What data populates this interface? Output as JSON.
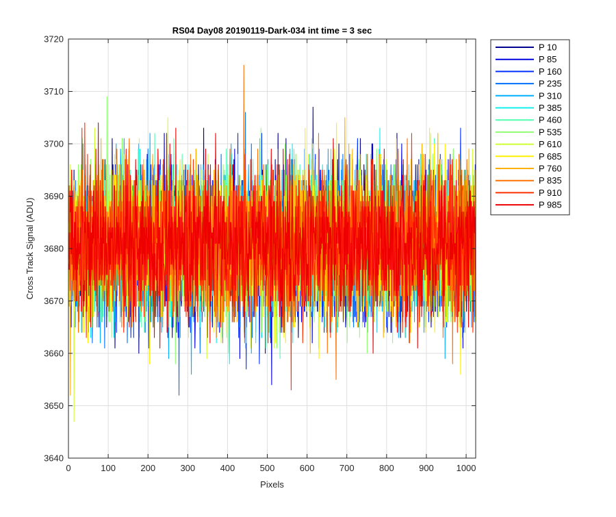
{
  "chart_data": {
    "type": "line",
    "title": "RS04 Day08 20190119-Dark-034 int time = 3 sec",
    "xlabel": "Pixels",
    "ylabel": "Cross Track Signal (ADU)",
    "xlim": [
      0,
      1024
    ],
    "ylim": [
      3640,
      3720
    ],
    "xticks": [
      0,
      100,
      200,
      300,
      400,
      500,
      600,
      700,
      800,
      900,
      1000
    ],
    "yticks": [
      3640,
      3650,
      3660,
      3670,
      3680,
      3690,
      3700,
      3710,
      3720
    ],
    "grid": true,
    "legend_position": "outside-top-right",
    "n_pixels": 1024,
    "series": [
      {
        "name": "P 10",
        "color": "#00008f",
        "mean": 3681,
        "min": 3660,
        "max": 3703
      },
      {
        "name": "P 85",
        "color": "#0000df",
        "mean": 3681,
        "min": 3654,
        "max": 3707
      },
      {
        "name": "P 160",
        "color": "#0030ff",
        "mean": 3681,
        "min": 3657,
        "max": 3703
      },
      {
        "name": "P 235",
        "color": "#0070ff",
        "mean": 3681,
        "min": 3652,
        "max": 3706
      },
      {
        "name": "P 310",
        "color": "#00b0ff",
        "mean": 3681,
        "min": 3656,
        "max": 3702
      },
      {
        "name": "P 385",
        "color": "#10f0ef",
        "mean": 3681,
        "min": 3658,
        "max": 3703
      },
      {
        "name": "P 460",
        "color": "#50ffaf",
        "mean": 3681,
        "min": 3659,
        "max": 3702
      },
      {
        "name": "P 535",
        "color": "#8fff70",
        "mean": 3681,
        "min": 3658,
        "max": 3709
      },
      {
        "name": "P 610",
        "color": "#cfff30",
        "mean": 3681,
        "min": 3647,
        "max": 3705
      },
      {
        "name": "P 685",
        "color": "#ffef00",
        "mean": 3681,
        "min": 3656,
        "max": 3704
      },
      {
        "name": "P 760",
        "color": "#ffaf00",
        "mean": 3681,
        "min": 3652,
        "max": 3705
      },
      {
        "name": "P 835",
        "color": "#ff7000",
        "mean": 3681,
        "min": 3655,
        "max": 3715
      },
      {
        "name": "P 910",
        "color": "#ff3000",
        "mean": 3681,
        "min": 3653,
        "max": 3704
      },
      {
        "name": "P 985",
        "color": "#ef0000",
        "mean": 3681,
        "min": 3660,
        "max": 3704
      }
    ]
  }
}
